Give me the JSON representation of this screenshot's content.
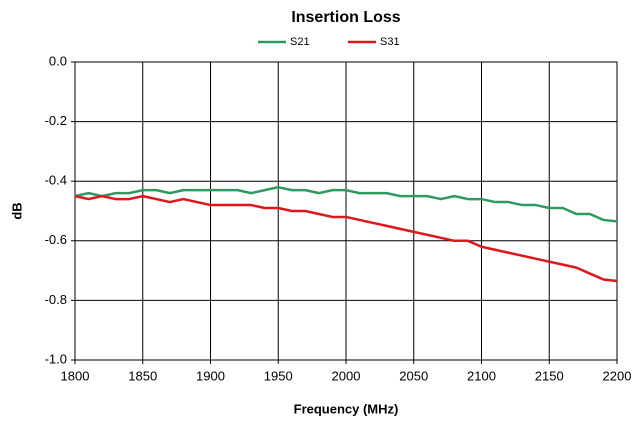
{
  "chart_data": {
    "type": "line",
    "title": "Insertion Loss",
    "xlabel": "Frequency (MHz)",
    "ylabel": "dB",
    "x": [
      1800,
      1810,
      1820,
      1830,
      1840,
      1850,
      1860,
      1870,
      1880,
      1890,
      1900,
      1910,
      1920,
      1930,
      1940,
      1950,
      1960,
      1970,
      1980,
      1990,
      2000,
      2010,
      2020,
      2030,
      2040,
      2050,
      2060,
      2070,
      2080,
      2090,
      2100,
      2110,
      2120,
      2130,
      2140,
      2150,
      2160,
      2170,
      2180,
      2190,
      2200
    ],
    "series": [
      {
        "name": "S21",
        "color": "#2f9a5f",
        "values": [
          -0.45,
          -0.44,
          -0.45,
          -0.44,
          -0.44,
          -0.43,
          -0.43,
          -0.44,
          -0.43,
          -0.43,
          -0.43,
          -0.43,
          -0.43,
          -0.44,
          -0.43,
          -0.42,
          -0.43,
          -0.43,
          -0.44,
          -0.43,
          -0.43,
          -0.44,
          -0.44,
          -0.44,
          -0.45,
          -0.45,
          -0.45,
          -0.46,
          -0.45,
          -0.46,
          -0.46,
          -0.47,
          -0.47,
          -0.48,
          -0.48,
          -0.49,
          -0.49,
          -0.51,
          -0.51,
          -0.53,
          -0.535
        ]
      },
      {
        "name": "S31",
        "color": "#e0161b",
        "values": [
          -0.45,
          -0.46,
          -0.45,
          -0.46,
          -0.46,
          -0.45,
          -0.46,
          -0.47,
          -0.46,
          -0.47,
          -0.48,
          -0.48,
          -0.48,
          -0.48,
          -0.49,
          -0.49,
          -0.5,
          -0.5,
          -0.51,
          -0.52,
          -0.52,
          -0.53,
          -0.54,
          -0.55,
          -0.56,
          -0.57,
          -0.58,
          -0.59,
          -0.6,
          -0.6,
          -0.62,
          -0.63,
          -0.64,
          -0.65,
          -0.66,
          -0.67,
          -0.68,
          -0.69,
          -0.71,
          -0.73,
          -0.735
        ]
      }
    ],
    "xlim": [
      1800,
      2200
    ],
    "xticks": [
      1800,
      1850,
      1900,
      1950,
      2000,
      2050,
      2100,
      2150,
      2200
    ],
    "ylim": [
      -1,
      0
    ],
    "yticks": [
      {
        "value": 0,
        "label": "0.0"
      },
      -0.2,
      -0.4,
      -0.6,
      -0.8,
      {
        "value": -1,
        "label": "-1.0"
      }
    ],
    "grid": true,
    "legend": "top"
  }
}
